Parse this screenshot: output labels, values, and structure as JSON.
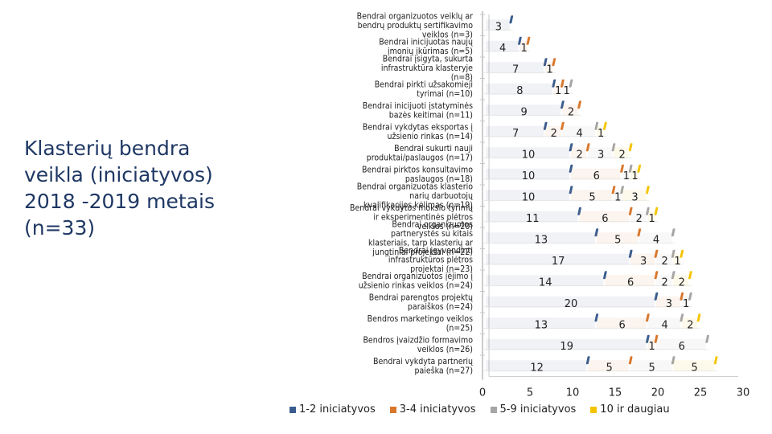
{
  "slide": {
    "title": "Klasterių bendra veikla (iniciatyvos) 2018 -2019 metais (n=33)"
  },
  "chart_data": {
    "type": "bar",
    "orientation": "horizontal",
    "stacked": true,
    "categories": [
      "Bendrai organizuotos veiklų ar bendrų produktų sertifikavimo veiklos (n=3)",
      "Bendrai inicijuotas naujų įmonių įkūrimas (n=5)",
      "Bendrai įsigyta, sukurta infrastruktūra klasteryje (n=8)",
      "Bendrai pirkti užsakomieji tyrimai (n=10)",
      "Bendrai inicijuoti įstatyminės bazės keitimai (n=11)",
      "Bendrai vykdytas eksportas į užsienio rinkas (n=14)",
      "Bendrai sukurti nauji produktai/paslaugos (n=17)",
      "Bendrai pirktos konsultavimo paslaugos (n=18)",
      "Bendrai organizuotas klasterio narių darbuotojų kvalifikacijos kėlimas (n=19)",
      "Bendrai vykdytos mokslo tyrimų ir eksperimentinės plėtros veiklos (n=20)",
      "Bendrai organizuotos partnerystės su kitais klasteriais, tarp klasterių ar jungtiniai projektai (n=22)",
      "Bendrai įgyvendinti infrastruktūros plėtros projektai (n=23)",
      "Bendrai organizuotos įėjimo į užsienio rinkas veiklos (n=24)",
      "Bendrai parengtos projektų paraiškos (n=24)",
      "Bendros marketingo veiklos (n=25)",
      "Bendros įvaizdžio formavimo veiklos (n=26)",
      "Bendrai vykdyta partnerių paieška (n=27)"
    ],
    "series": [
      {
        "name": "1-2 iniciatyvos",
        "color": "#3a5d8f",
        "values": [
          3,
          4,
          7,
          8,
          9,
          7,
          10,
          10,
          10,
          11,
          13,
          17,
          14,
          20,
          13,
          19,
          12
        ]
      },
      {
        "name": "3-4 iniciatyvos",
        "color": "#d9772b",
        "values": [
          0,
          1,
          1,
          1,
          2,
          2,
          2,
          6,
          5,
          6,
          5,
          3,
          6,
          3,
          6,
          1,
          5
        ]
      },
      {
        "name": "5-9 iniciatyvos",
        "color": "#a5a5a5",
        "values": [
          0,
          0,
          0,
          1,
          0,
          4,
          3,
          1,
          1,
          2,
          4,
          2,
          2,
          1,
          4,
          6,
          5
        ]
      },
      {
        "name": "10 ir daugiau",
        "color": "#f5c400",
        "values": [
          0,
          0,
          0,
          0,
          0,
          1,
          2,
          1,
          3,
          1,
          0,
          1,
          2,
          0,
          2,
          0,
          5
        ]
      }
    ],
    "xlim": [
      0,
      30
    ],
    "xticks": [
      "0",
      "5",
      "10",
      "15",
      "20",
      "25",
      "30"
    ],
    "legend_position": "bottom"
  }
}
